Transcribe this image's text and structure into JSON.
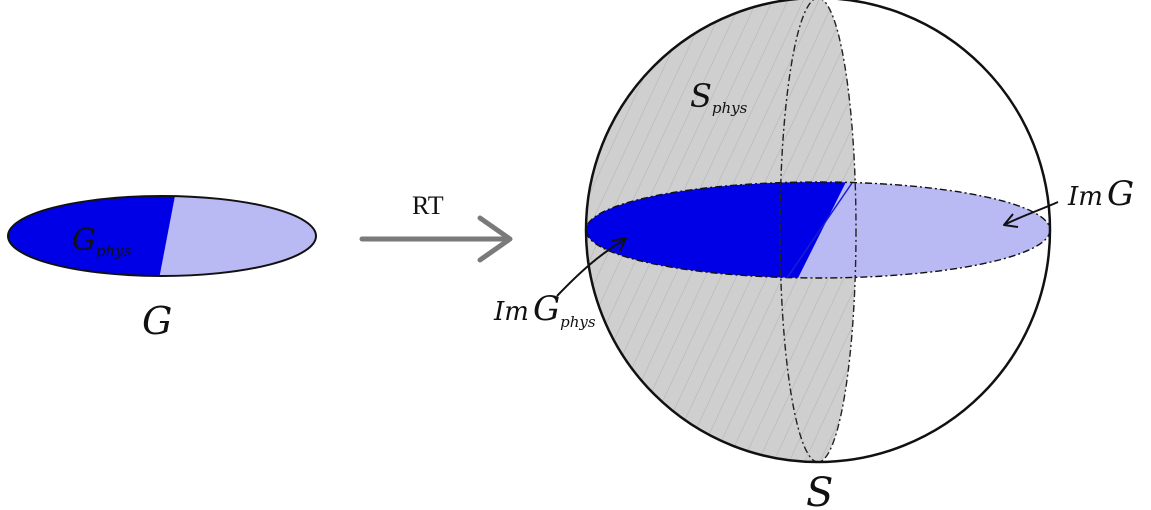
{
  "labels": {
    "g_phys_main": "G",
    "g_phys_sub": "phys",
    "g": "G",
    "arrow": "RT",
    "s_phys_main": "S",
    "s_phys_sub": "phys",
    "im_g_phys_prefix": "Im",
    "im_g_phys_main": "G",
    "im_g_phys_sub": "phys",
    "im_g_prefix": "Im",
    "im_g_main": "G",
    "s": "S"
  },
  "colors": {
    "phys_region": "#0000e6",
    "complement_region": "#b9b9f4",
    "physical_hemisphere": "#cfcfcf",
    "outline": "#111111",
    "arrow": "#7a7a7a"
  }
}
